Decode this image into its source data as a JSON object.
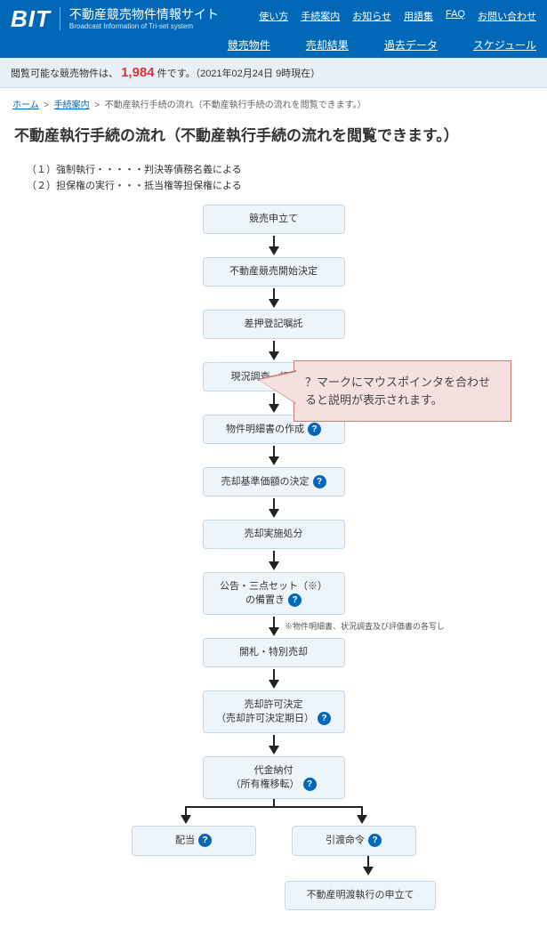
{
  "header": {
    "logo": "BIT",
    "title": "不動産競売物件情報サイト",
    "subtitle": "Broadcast Information of Tri-set system",
    "top_links": [
      "使い方",
      "手続案内",
      "お知らせ",
      "用語集",
      "FAQ",
      "お問い合わせ"
    ],
    "nav": [
      "競売物件",
      "売却結果",
      "過去データ",
      "スケジュール"
    ]
  },
  "status": {
    "prefix": "閲覧可能な競売物件は、",
    "count": "1,984",
    "suffix": " 件です。（2021年02月24日 9時現在）"
  },
  "breadcrumb": {
    "items": [
      "ホーム",
      "手続案内"
    ],
    "current": "不動産執行手続の流れ（不動産執行手続の流れを閲覧できます。）"
  },
  "page_title": "不動産執行手続の流れ（不動産執行手続の流れを閲覧できます。）",
  "notes": [
    "（１）強制執行・・・・・判決等債務名義による",
    "（２）担保権の実行・・・抵当権等担保権による"
  ],
  "callout": "？マークにマウスポインタを合わせると説明が表示されます。",
  "sidenote": "※物件明細書、状況調査及び評価書の各写し",
  "flow": [
    {
      "label": "競売申立て",
      "help": false
    },
    {
      "label": "不動産競売開始決定",
      "help": false
    },
    {
      "label": "差押登記嘱託",
      "help": false
    },
    {
      "label": "現況調査・評価",
      "help": true
    },
    {
      "label": "物件明細書の作成",
      "help": true
    },
    {
      "label": "売却基準価額の決定",
      "help": true
    },
    {
      "label": "売却実施処分",
      "help": false
    },
    {
      "label": "公告・三点セット（※）\nの備置き",
      "help": true,
      "sidenote": true
    },
    {
      "label": "開札・特別売却",
      "help": false
    },
    {
      "label": "売却許可決定\n（売却許可決定期日）",
      "help": true
    },
    {
      "label": "代金納付\n（所有権移転）",
      "help": true
    }
  ],
  "branch": {
    "left": {
      "label": "配当",
      "help": true
    },
    "right": {
      "label": "引渡命令",
      "help": true
    }
  },
  "final": {
    "label": "不動産明渡執行の申立て",
    "help": false
  },
  "colors": {
    "header_bg": "#0068b7",
    "status_bg": "#e9f0f5",
    "count_color": "#d9333f",
    "node_bg": "#eef5fa",
    "node_border": "#c8d6e0",
    "callout_bg": "#f4e0df",
    "callout_border": "#d07a74",
    "help_bg": "#0068b7"
  }
}
